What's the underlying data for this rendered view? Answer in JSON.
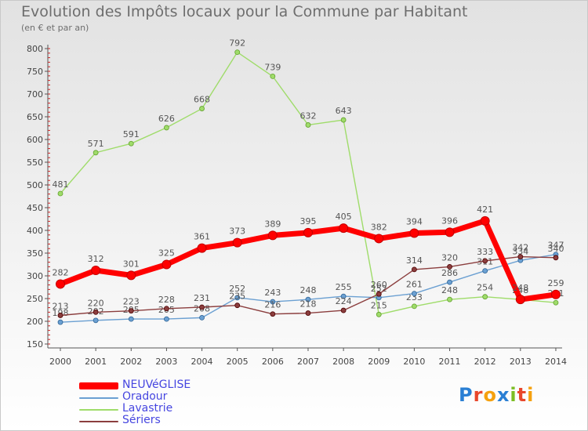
{
  "header": {
    "title": "Evolution des Impôts locaux pour la Commune par Habitant",
    "subtitle": "(en € et par an)"
  },
  "logo": {
    "letters": [
      "P",
      "r",
      "o",
      "x",
      "i",
      "t",
      "i"
    ],
    "colors": [
      "#2a7fd4",
      "#e8472c",
      "#f5a10f",
      "#2a7fd4",
      "#7cbd23",
      "#e8472c",
      "#f5a10f"
    ]
  },
  "chart_data": {
    "type": "line",
    "title": "Evolution des Impôts locaux pour la Commune par Habitant",
    "subtitle": "(en € et par an)",
    "x": [
      "2000",
      "2001",
      "2002",
      "2003",
      "2004",
      "2005",
      "2006",
      "2007",
      "2008",
      "2009",
      "2010",
      "2011",
      "2012",
      "2013",
      "2014"
    ],
    "ylim": [
      150,
      800
    ],
    "yticks": [
      150,
      200,
      250,
      300,
      350,
      400,
      450,
      500,
      550,
      600,
      650,
      700,
      750,
      800
    ],
    "grid": false,
    "legend_position": "bottom-left",
    "series": [
      {
        "name": "NEUVéGLISE",
        "color": "#ff0000",
        "values": [
          282,
          312,
          301,
          325,
          361,
          373,
          389,
          395,
          405,
          382,
          394,
          396,
          421,
          248,
          259
        ],
        "labels": [
          "282",
          "312",
          "301",
          "325",
          "361",
          "373",
          "389",
          "395",
          "405",
          "382",
          "394",
          "396",
          "421",
          "248",
          "259"
        ]
      },
      {
        "name": "Oradour",
        "color": "#6ba0d2",
        "values": [
          198,
          202,
          205,
          205,
          208,
          252,
          243,
          248,
          255,
          252,
          261,
          286,
          311,
          334,
          347
        ],
        "labels": [
          "198",
          "202",
          "205",
          "205",
          "208",
          "252",
          "243",
          "248",
          "255",
          "252",
          "261",
          "286",
          "311",
          "334",
          "347"
        ]
      },
      {
        "name": "Lavastrie",
        "color": "#9fdc6a",
        "values": [
          481,
          571,
          591,
          626,
          668,
          792,
          739,
          632,
          643,
          215,
          233,
          248,
          254,
          248,
          241
        ],
        "labels": [
          "481",
          "571",
          "591",
          "626",
          "668",
          "792",
          "739",
          "632",
          "643",
          "215",
          "233",
          "248",
          "254",
          "248",
          "241"
        ]
      },
      {
        "name": "Sériers",
        "color": "#8b3e3e",
        "values": [
          213,
          220,
          223,
          228,
          231,
          235,
          216,
          218,
          224,
          260,
          314,
          320,
          333,
          342,
          340
        ],
        "labels": [
          "213",
          "220",
          "223",
          "228",
          "231",
          "235",
          "216",
          "218",
          "224",
          "260",
          "314",
          "320",
          "333",
          "342",
          "340"
        ]
      }
    ]
  }
}
